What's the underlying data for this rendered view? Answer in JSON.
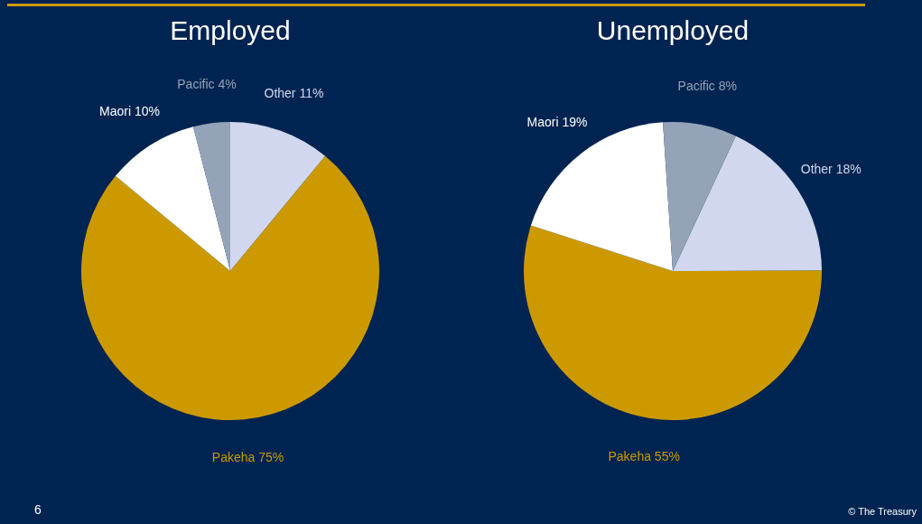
{
  "chart_data": [
    {
      "type": "pie",
      "title": "Employed",
      "categories": [
        "Other",
        "Pakeha",
        "Maori",
        "Pacific"
      ],
      "values": [
        11,
        75,
        10,
        4
      ],
      "value_labels": [
        "11%",
        "75%",
        "10%",
        "4%"
      ],
      "colors": [
        "#d0d7ee",
        "#cc9900",
        "#ffffff",
        "#94a3b8"
      ],
      "annotations": [
        "6"
      ]
    },
    {
      "type": "pie",
      "title": "Unemployed",
      "categories": [
        "Other",
        "Pakeha",
        "Maori",
        "Pacific"
      ],
      "values": [
        18,
        55,
        19,
        8
      ],
      "value_labels": [
        "18%",
        "55%",
        "19%",
        "8%"
      ],
      "colors": [
        "#d0d7ee",
        "#cc9900",
        "#ffffff",
        "#94a3b8"
      ],
      "annotations": [
        "© The Treasury"
      ]
    }
  ]
}
